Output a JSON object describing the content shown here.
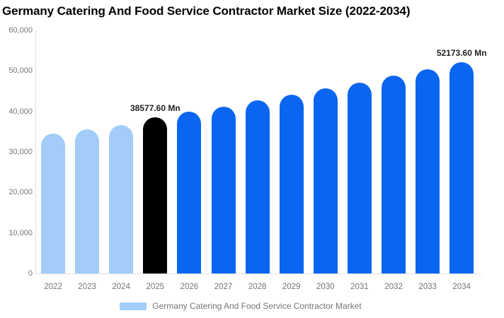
{
  "title": "Germany Catering And Food Service Contractor Market Size (2022-2034)",
  "unit": "Mn",
  "colors": {
    "historical_bar": "#a3ccf8",
    "highlight_bar": "#000000",
    "forecast_bar": "#0a66f0",
    "axis_text": "#757575",
    "data_label_text": "#222222",
    "axis_line": "#e0e0e0"
  },
  "chart_data": {
    "type": "bar",
    "title": "Germany Catering And Food Service Contractor Market Size (2022-2034)",
    "xlabel": "",
    "ylabel": "",
    "categories": [
      "2022",
      "2023",
      "2024",
      "2025",
      "2026",
      "2027",
      "2028",
      "2029",
      "2030",
      "2031",
      "2032",
      "2033",
      "2034"
    ],
    "values": [
      34500,
      35600,
      36600,
      38577.6,
      39890,
      41250,
      42660,
      44120,
      45620,
      47180,
      48790,
      50450,
      52173.6
    ],
    "bar_colors": [
      "#a3ccf8",
      "#a3ccf8",
      "#a3ccf8",
      "#000000",
      "#0a66f0",
      "#0a66f0",
      "#0a66f0",
      "#0a66f0",
      "#0a66f0",
      "#0a66f0",
      "#0a66f0",
      "#0a66f0",
      "#0a66f0"
    ],
    "annotations": [
      {
        "index": 3,
        "text": "38577.60 Mn"
      },
      {
        "index": 12,
        "text": "52173.60 Mn"
      }
    ],
    "ylim": [
      0,
      60000
    ],
    "y_tick_labels": [
      "0",
      "10,000",
      "20,000",
      "30,000",
      "40,000",
      "50,000",
      "60,000"
    ],
    "grid": false,
    "legend_position": "bottom",
    "legend": [
      {
        "label": "Germany Catering And Food Service Contractor Market",
        "color": "#a3ccf8"
      }
    ]
  }
}
